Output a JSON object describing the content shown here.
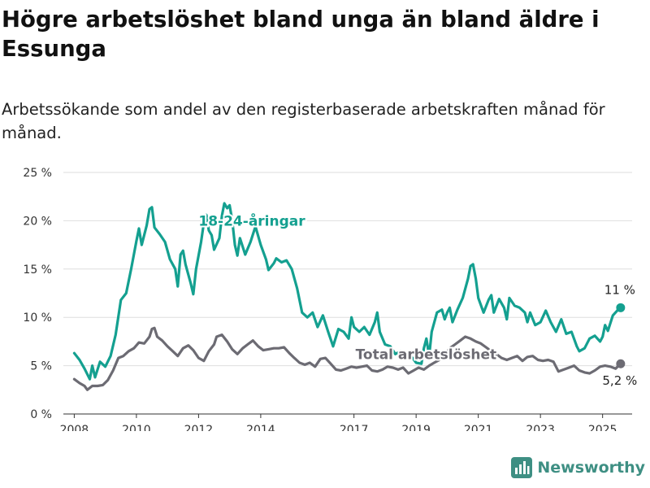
{
  "title": "Högre arbetslöshet bland unga än bland äldre i Essunga",
  "subtitle": "Arbetssökande som andel av den registerbaserade arbetskraften månad för månad.",
  "brand": {
    "name": "Newsworthy",
    "icon": "bar-chart-logo-icon",
    "color": "#3e8f83"
  },
  "chart_data": {
    "type": "line",
    "title": "Högre arbetslöshet bland unga än bland äldre i Essunga",
    "xlabel": "",
    "ylabel": "",
    "xlim": [
      2007.65,
      2025.95
    ],
    "ylim": [
      0,
      25
    ],
    "grid": true,
    "x_ticks": [
      2008,
      2010,
      2012,
      2014,
      2017,
      2019,
      2021,
      2023,
      2025
    ],
    "y_ticks": [
      0,
      5,
      10,
      15,
      20,
      25
    ],
    "y_tick_labels": [
      "0 %",
      "5 %",
      "10 %",
      "15 %",
      "20 %",
      "25 %"
    ],
    "series": [
      {
        "name": "18-24-åringar",
        "color": "#14a090",
        "end_label": "11 %",
        "points": [
          [
            2008.0,
            6.3
          ],
          [
            2008.17,
            5.6
          ],
          [
            2008.33,
            4.7
          ],
          [
            2008.5,
            3.6
          ],
          [
            2008.58,
            5.0
          ],
          [
            2008.67,
            3.8
          ],
          [
            2008.83,
            5.4
          ],
          [
            2009.0,
            4.9
          ],
          [
            2009.17,
            6.0
          ],
          [
            2009.33,
            8.2
          ],
          [
            2009.5,
            11.8
          ],
          [
            2009.67,
            12.5
          ],
          [
            2009.83,
            15.0
          ],
          [
            2010.0,
            17.9
          ],
          [
            2010.08,
            19.2
          ],
          [
            2010.17,
            17.5
          ],
          [
            2010.33,
            19.5
          ],
          [
            2010.42,
            21.2
          ],
          [
            2010.5,
            21.4
          ],
          [
            2010.58,
            19.3
          ],
          [
            2010.75,
            18.6
          ],
          [
            2010.92,
            17.8
          ],
          [
            2011.08,
            16.0
          ],
          [
            2011.25,
            15.0
          ],
          [
            2011.33,
            13.2
          ],
          [
            2011.42,
            16.5
          ],
          [
            2011.5,
            16.9
          ],
          [
            2011.58,
            15.5
          ],
          [
            2011.75,
            13.5
          ],
          [
            2011.83,
            12.4
          ],
          [
            2011.92,
            15.0
          ],
          [
            2012.08,
            17.8
          ],
          [
            2012.17,
            19.8
          ],
          [
            2012.25,
            20.6
          ],
          [
            2012.33,
            19.0
          ],
          [
            2012.42,
            18.5
          ],
          [
            2012.5,
            17.0
          ],
          [
            2012.67,
            18.2
          ],
          [
            2012.75,
            20.5
          ],
          [
            2012.83,
            21.8
          ],
          [
            2012.92,
            21.3
          ],
          [
            2013.0,
            21.6
          ],
          [
            2013.08,
            20.1
          ],
          [
            2013.17,
            17.5
          ],
          [
            2013.25,
            16.4
          ],
          [
            2013.33,
            18.2
          ],
          [
            2013.5,
            16.5
          ],
          [
            2013.67,
            17.8
          ],
          [
            2013.83,
            19.4
          ],
          [
            2014.0,
            17.5
          ],
          [
            2014.17,
            16.0
          ],
          [
            2014.25,
            14.9
          ],
          [
            2014.42,
            15.6
          ],
          [
            2014.5,
            16.1
          ],
          [
            2014.67,
            15.7
          ],
          [
            2014.83,
            15.9
          ],
          [
            2015.0,
            15.0
          ],
          [
            2015.17,
            13.0
          ],
          [
            2015.33,
            10.5
          ],
          [
            2015.5,
            10.0
          ],
          [
            2015.67,
            10.5
          ],
          [
            2015.83,
            9.0
          ],
          [
            2016.0,
            10.2
          ],
          [
            2016.17,
            8.5
          ],
          [
            2016.33,
            7.0
          ],
          [
            2016.5,
            8.8
          ],
          [
            2016.67,
            8.5
          ],
          [
            2016.83,
            7.8
          ],
          [
            2016.92,
            10.0
          ],
          [
            2017.0,
            9.0
          ],
          [
            2017.17,
            8.5
          ],
          [
            2017.33,
            9.0
          ],
          [
            2017.5,
            8.2
          ],
          [
            2017.67,
            9.5
          ],
          [
            2017.75,
            10.5
          ],
          [
            2017.83,
            8.5
          ],
          [
            2018.0,
            7.2
          ],
          [
            2018.17,
            7.0
          ],
          [
            2018.33,
            6.2
          ],
          [
            2018.5,
            6.5
          ],
          [
            2018.67,
            5.8
          ],
          [
            2018.83,
            6.0
          ],
          [
            2019.0,
            5.3
          ],
          [
            2019.17,
            5.2
          ],
          [
            2019.25,
            6.8
          ],
          [
            2019.33,
            7.8
          ],
          [
            2019.42,
            6.0
          ],
          [
            2019.5,
            8.5
          ],
          [
            2019.67,
            10.5
          ],
          [
            2019.83,
            10.8
          ],
          [
            2019.92,
            9.8
          ],
          [
            2020.0,
            10.5
          ],
          [
            2020.08,
            11.0
          ],
          [
            2020.17,
            9.5
          ],
          [
            2020.33,
            10.8
          ],
          [
            2020.5,
            12.0
          ],
          [
            2020.67,
            14.0
          ],
          [
            2020.75,
            15.3
          ],
          [
            2020.83,
            15.5
          ],
          [
            2020.92,
            14.0
          ],
          [
            2021.0,
            12.0
          ],
          [
            2021.17,
            10.5
          ],
          [
            2021.33,
            11.8
          ],
          [
            2021.42,
            12.3
          ],
          [
            2021.5,
            10.5
          ],
          [
            2021.67,
            11.9
          ],
          [
            2021.83,
            11.0
          ],
          [
            2021.92,
            9.8
          ],
          [
            2022.0,
            12.0
          ],
          [
            2022.17,
            11.2
          ],
          [
            2022.33,
            11.0
          ],
          [
            2022.5,
            10.5
          ],
          [
            2022.58,
            9.5
          ],
          [
            2022.67,
            10.5
          ],
          [
            2022.83,
            9.2
          ],
          [
            2023.0,
            9.5
          ],
          [
            2023.17,
            10.7
          ],
          [
            2023.33,
            9.5
          ],
          [
            2023.5,
            8.5
          ],
          [
            2023.67,
            9.8
          ],
          [
            2023.83,
            8.3
          ],
          [
            2024.0,
            8.5
          ],
          [
            2024.17,
            7.0
          ],
          [
            2024.25,
            6.5
          ],
          [
            2024.42,
            6.8
          ],
          [
            2024.58,
            7.8
          ],
          [
            2024.75,
            8.1
          ],
          [
            2024.92,
            7.5
          ],
          [
            2025.0,
            8.0
          ],
          [
            2025.08,
            9.2
          ],
          [
            2025.17,
            8.6
          ],
          [
            2025.33,
            10.2
          ],
          [
            2025.5,
            10.8
          ],
          [
            2025.58,
            11.0
          ]
        ]
      },
      {
        "name": "Total arbetslöshet",
        "color": "#6c6b73",
        "end_label": "5,2 %",
        "points": [
          [
            2008.0,
            3.6
          ],
          [
            2008.17,
            3.2
          ],
          [
            2008.33,
            2.9
          ],
          [
            2008.42,
            2.5
          ],
          [
            2008.58,
            2.9
          ],
          [
            2008.75,
            2.9
          ],
          [
            2008.92,
            3.0
          ],
          [
            2009.08,
            3.5
          ],
          [
            2009.25,
            4.5
          ],
          [
            2009.42,
            5.8
          ],
          [
            2009.58,
            6.0
          ],
          [
            2009.75,
            6.5
          ],
          [
            2009.92,
            6.8
          ],
          [
            2010.08,
            7.4
          ],
          [
            2010.25,
            7.3
          ],
          [
            2010.42,
            8.0
          ],
          [
            2010.5,
            8.8
          ],
          [
            2010.58,
            8.9
          ],
          [
            2010.67,
            8.0
          ],
          [
            2010.83,
            7.6
          ],
          [
            2011.0,
            7.0
          ],
          [
            2011.17,
            6.5
          ],
          [
            2011.33,
            6.0
          ],
          [
            2011.5,
            6.8
          ],
          [
            2011.67,
            7.1
          ],
          [
            2011.83,
            6.6
          ],
          [
            2012.0,
            5.8
          ],
          [
            2012.17,
            5.5
          ],
          [
            2012.33,
            6.5
          ],
          [
            2012.5,
            7.2
          ],
          [
            2012.58,
            8.0
          ],
          [
            2012.75,
            8.2
          ],
          [
            2012.92,
            7.5
          ],
          [
            2013.08,
            6.7
          ],
          [
            2013.25,
            6.2
          ],
          [
            2013.42,
            6.8
          ],
          [
            2013.58,
            7.2
          ],
          [
            2013.75,
            7.6
          ],
          [
            2013.92,
            7.0
          ],
          [
            2014.08,
            6.6
          ],
          [
            2014.25,
            6.7
          ],
          [
            2014.42,
            6.8
          ],
          [
            2014.58,
            6.8
          ],
          [
            2014.75,
            6.9
          ],
          [
            2014.92,
            6.3
          ],
          [
            2015.08,
            5.8
          ],
          [
            2015.25,
            5.3
          ],
          [
            2015.42,
            5.1
          ],
          [
            2015.58,
            5.3
          ],
          [
            2015.75,
            4.9
          ],
          [
            2015.92,
            5.7
          ],
          [
            2016.08,
            5.8
          ],
          [
            2016.25,
            5.2
          ],
          [
            2016.42,
            4.6
          ],
          [
            2016.58,
            4.5
          ],
          [
            2016.75,
            4.7
          ],
          [
            2016.92,
            4.9
          ],
          [
            2017.08,
            4.8
          ],
          [
            2017.25,
            4.9
          ],
          [
            2017.42,
            5.0
          ],
          [
            2017.58,
            4.5
          ],
          [
            2017.75,
            4.4
          ],
          [
            2017.92,
            4.6
          ],
          [
            2018.08,
            4.9
          ],
          [
            2018.25,
            4.8
          ],
          [
            2018.42,
            4.6
          ],
          [
            2018.58,
            4.8
          ],
          [
            2018.75,
            4.2
          ],
          [
            2018.92,
            4.5
          ],
          [
            2019.08,
            4.8
          ],
          [
            2019.25,
            4.6
          ],
          [
            2019.42,
            5.0
          ],
          [
            2019.58,
            5.3
          ],
          [
            2019.75,
            5.6
          ],
          [
            2019.92,
            6.0
          ],
          [
            2020.08,
            6.8
          ],
          [
            2020.25,
            7.2
          ],
          [
            2020.42,
            7.6
          ],
          [
            2020.58,
            8.0
          ],
          [
            2020.75,
            7.8
          ],
          [
            2020.92,
            7.5
          ],
          [
            2021.08,
            7.3
          ],
          [
            2021.25,
            6.9
          ],
          [
            2021.42,
            6.5
          ],
          [
            2021.58,
            6.2
          ],
          [
            2021.75,
            5.8
          ],
          [
            2021.92,
            5.6
          ],
          [
            2022.08,
            5.8
          ],
          [
            2022.25,
            6.0
          ],
          [
            2022.42,
            5.5
          ],
          [
            2022.58,
            5.9
          ],
          [
            2022.75,
            6.0
          ],
          [
            2022.92,
            5.6
          ],
          [
            2023.08,
            5.5
          ],
          [
            2023.25,
            5.6
          ],
          [
            2023.42,
            5.4
          ],
          [
            2023.58,
            4.4
          ],
          [
            2023.75,
            4.6
          ],
          [
            2023.92,
            4.8
          ],
          [
            2024.08,
            5.0
          ],
          [
            2024.25,
            4.5
          ],
          [
            2024.42,
            4.3
          ],
          [
            2024.58,
            4.2
          ],
          [
            2024.75,
            4.5
          ],
          [
            2024.92,
            4.9
          ],
          [
            2025.08,
            5.0
          ],
          [
            2025.25,
            4.9
          ],
          [
            2025.42,
            4.7
          ],
          [
            2025.58,
            5.2
          ]
        ]
      }
    ]
  }
}
